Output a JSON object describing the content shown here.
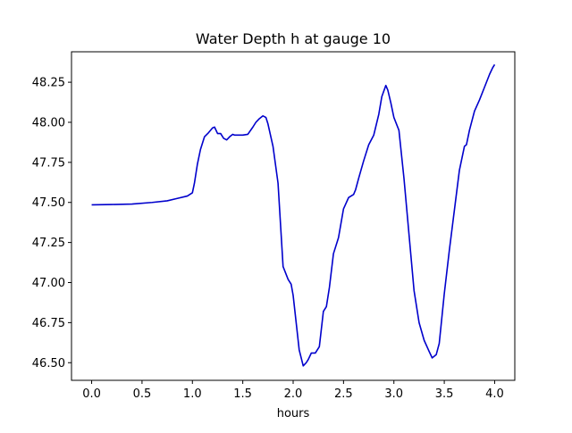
{
  "chart_data": {
    "type": "line",
    "title": "Water Depth h at gauge 10",
    "xlabel": "hours",
    "ylabel": "",
    "xlim": [
      -0.2,
      4.2
    ],
    "ylim": [
      46.39,
      48.44
    ],
    "xticks": [
      0.0,
      0.5,
      1.0,
      1.5,
      2.0,
      2.5,
      3.0,
      3.5,
      4.0
    ],
    "xtick_labels": [
      "0.0",
      "0.5",
      "1.0",
      "1.5",
      "2.0",
      "2.5",
      "3.0",
      "3.5",
      "4.0"
    ],
    "yticks": [
      46.5,
      46.75,
      47.0,
      47.25,
      47.5,
      47.75,
      48.0,
      48.25
    ],
    "ytick_labels": [
      "46.50",
      "46.75",
      "47.00",
      "47.25",
      "47.50",
      "47.75",
      "48.00",
      "48.25"
    ],
    "grid": false,
    "line_color": "#0000cc",
    "series": [
      {
        "x": [
          0.0,
          0.2,
          0.4,
          0.6,
          0.75,
          0.85,
          0.95,
          1.0,
          1.02,
          1.05,
          1.08,
          1.12,
          1.16,
          1.2,
          1.22,
          1.25,
          1.28,
          1.31,
          1.34,
          1.37,
          1.4,
          1.42,
          1.45,
          1.5,
          1.55,
          1.6,
          1.63,
          1.66,
          1.7,
          1.73,
          1.75,
          1.8,
          1.85,
          1.9,
          1.95,
          1.98,
          2.0,
          2.03,
          2.06,
          2.1,
          2.13,
          2.15,
          2.18,
          2.22,
          2.26,
          2.3,
          2.33,
          2.36,
          2.4,
          2.45,
          2.5,
          2.55,
          2.6,
          2.62,
          2.65,
          2.7,
          2.75,
          2.8,
          2.85,
          2.88,
          2.92,
          2.94,
          2.97,
          3.0,
          3.05,
          3.1,
          3.15,
          3.2,
          3.25,
          3.3,
          3.35,
          3.38,
          3.42,
          3.45,
          3.5,
          3.55,
          3.6,
          3.65,
          3.7,
          3.72,
          3.75,
          3.8,
          3.85,
          3.9,
          3.95,
          3.98,
          4.0
        ],
        "y": [
          47.485,
          47.487,
          47.49,
          47.5,
          47.51,
          47.525,
          47.54,
          47.56,
          47.62,
          47.74,
          47.83,
          47.91,
          47.935,
          47.965,
          47.97,
          47.93,
          47.93,
          47.9,
          47.89,
          47.91,
          47.925,
          47.92,
          47.92,
          47.92,
          47.925,
          47.97,
          48.0,
          48.02,
          48.04,
          48.03,
          47.99,
          47.85,
          47.62,
          47.1,
          47.02,
          46.99,
          46.92,
          46.75,
          46.58,
          46.48,
          46.5,
          46.52,
          46.56,
          46.56,
          46.6,
          46.82,
          46.85,
          46.97,
          47.18,
          47.28,
          47.46,
          47.53,
          47.55,
          47.58,
          47.65,
          47.76,
          47.86,
          47.92,
          48.05,
          48.16,
          48.23,
          48.2,
          48.12,
          48.03,
          47.95,
          47.65,
          47.3,
          46.95,
          46.75,
          46.64,
          46.57,
          46.53,
          46.55,
          46.62,
          46.93,
          47.2,
          47.45,
          47.7,
          47.85,
          47.86,
          47.95,
          48.07,
          48.14,
          48.22,
          48.3,
          48.34,
          48.36
        ]
      }
    ]
  }
}
